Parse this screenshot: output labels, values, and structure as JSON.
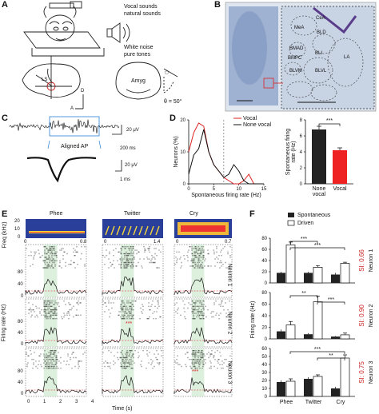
{
  "panels": {
    "A": {
      "label": "A",
      "sound_lines": [
        "Vocal sounds",
        "natural sounds",
        "White noise",
        "pure tones"
      ],
      "amyg": "Amyg",
      "ls": "LS",
      "angle": "θ = 50°",
      "dir_d": "D",
      "dir_a": "A"
    },
    "B": {
      "label": "B",
      "regions": [
        "CeA",
        "MeA",
        "BLD",
        "BMAD",
        "BMPC",
        "BLI",
        "LA",
        "BLVM",
        "BLVL"
      ]
    },
    "C": {
      "label": "C",
      "aligned": "Aligned AP",
      "scale_v": "20 μV",
      "scale_t": "200 ms",
      "scale_v2": "20 μV",
      "scale_t2": "1 ms"
    },
    "D": {
      "label": "D"
    },
    "E": {
      "label": "E",
      "stimuli": [
        "Phee",
        "Twitter",
        "Cry"
      ],
      "freq_label": "Freq (kHz)",
      "freq_ticks": [
        "20",
        "10",
        "0"
      ],
      "x_ticks": [
        [
          "0",
          "0.8"
        ],
        [
          "0",
          "1.4"
        ],
        [
          "0",
          "0.7"
        ]
      ],
      "neurons": [
        "Neuron 1",
        "Neuron 2",
        "Neuron 3"
      ],
      "ylabel": "Firing rate (Hz)",
      "xlabel": "Time (s)",
      "time_ticks": [
        "0",
        "1",
        "2",
        "3",
        "4"
      ],
      "rate_ticks": [
        [
          "80",
          "40",
          "0"
        ],
        [
          "80",
          "40",
          "0"
        ],
        [
          "80",
          "40",
          "0"
        ]
      ],
      "stars": "***"
    },
    "F": {
      "label": "F"
    }
  },
  "chart_data": [
    {
      "type": "line",
      "id": "D-left",
      "xlabel": "Spontaneous firing rate (Hz)",
      "ylabel": "Neurons (%)",
      "xlim": [
        0,
        15
      ],
      "ylim": [
        0,
        20
      ],
      "xticks": [
        0,
        5,
        10,
        15
      ],
      "yticks": [
        0,
        10,
        20
      ],
      "legend_position": "top-right",
      "series": [
        {
          "name": "Vocal",
          "color": "#d22",
          "x": [
            0,
            1,
            2,
            3,
            4,
            5,
            6,
            7,
            8,
            9,
            10,
            11,
            12,
            13,
            14,
            15
          ],
          "values": [
            10,
            16,
            19,
            18,
            10,
            6,
            4,
            2,
            1,
            0,
            0,
            1,
            3,
            0,
            0,
            0
          ]
        },
        {
          "name": "None vocal",
          "color": "#111",
          "x": [
            0,
            1,
            2,
            3,
            4,
            5,
            6,
            7,
            8,
            9,
            10,
            11,
            12,
            13,
            14,
            15
          ],
          "values": [
            3,
            9,
            11,
            17,
            10,
            6,
            4,
            2,
            3,
            6,
            4,
            1,
            0,
            0,
            0,
            0
          ]
        }
      ],
      "dashed_x": 7
    },
    {
      "type": "bar",
      "id": "D-right",
      "ylabel": "Spontaneous firing rate (Hz)",
      "categories": [
        "None vocal",
        "Vocal"
      ],
      "values": [
        6.8,
        4.2
      ],
      "errors": [
        0.4,
        0.3
      ],
      "colors": [
        "#222",
        "#e22"
      ],
      "ylim": [
        0,
        8
      ],
      "yticks": [
        0,
        2,
        4,
        6,
        8
      ],
      "significance": "***"
    },
    {
      "type": "bar",
      "id": "F",
      "ylabel": "Firing rate (Hz)",
      "categories": [
        "Phee",
        "Twitter",
        "Cry"
      ],
      "legend": [
        "Spontaneous",
        "Driven"
      ],
      "legend_position": "top",
      "rows": [
        {
          "neuron": "Neuron 1",
          "si": "SI: 0.66",
          "ylim": [
            0,
            80
          ],
          "yticks": [
            0,
            20,
            40,
            60,
            80
          ],
          "spontaneous": [
            18,
            18,
            15
          ],
          "driven": [
            68,
            28,
            35
          ],
          "sp_err": [
            2,
            2,
            3
          ],
          "dr_err": [
            5,
            3,
            2
          ],
          "sig": [
            [
              "***",
              0,
              1
            ],
            [
              "***",
              0,
              2
            ]
          ]
        },
        {
          "neuron": "Neuron 2",
          "si": "SI: 0.90",
          "ylim": [
            0,
            80
          ],
          "yticks": [
            0,
            20,
            40,
            60,
            80
          ],
          "spontaneous": [
            13,
            8,
            4
          ],
          "driven": [
            24,
            64,
            7
          ],
          "sp_err": [
            3,
            2,
            1
          ],
          "dr_err": [
            6,
            10,
            3
          ],
          "sig": [
            [
              "**",
              0,
              1
            ],
            [
              "***",
              1,
              2
            ]
          ]
        },
        {
          "neuron": "Neuron 3",
          "si": "SI: 0.75",
          "ylim": [
            0,
            60
          ],
          "yticks": [
            0,
            10,
            20,
            30,
            40,
            50,
            60
          ],
          "spontaneous": [
            18,
            22,
            10
          ],
          "driven": [
            19,
            25,
            48
          ],
          "sp_err": [
            2,
            2,
            2
          ],
          "dr_err": [
            3,
            2,
            4
          ],
          "sig": [
            [
              "***",
              0,
              2
            ],
            [
              "**",
              1,
              2
            ]
          ]
        }
      ]
    }
  ]
}
